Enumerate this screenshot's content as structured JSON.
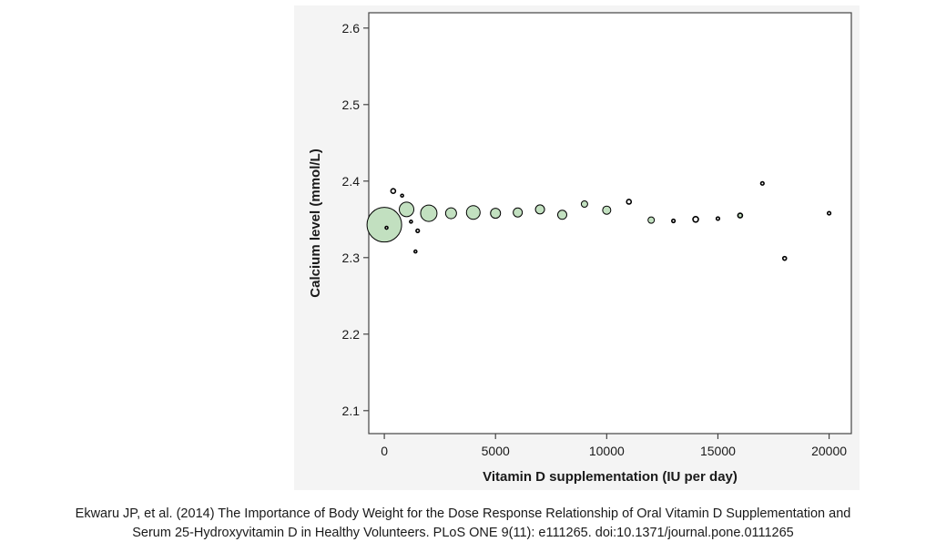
{
  "caption": {
    "line1": "Ekwaru JP, et al. (2014) The Importance of Body Weight for the Dose Response Relationship of Oral Vitamin D Supplementation and",
    "line2": "Serum 25-Hydroxyvitamin D in Healthy Volunteers. PLoS ONE 9(11): e111265. doi:10.1371/journal.pone.0111265"
  },
  "colors": {
    "bubble_fill": "#c2e0c0",
    "marker_stroke": "#000000",
    "panel_background": "#f4f4f4",
    "plot_background": "#ffffff"
  },
  "chart_data": {
    "type": "scatter",
    "xlabel": "Vitamin D supplementation (IU per day)",
    "ylabel": "Calcium level (mmol/L)",
    "xlim": [
      -700,
      21000
    ],
    "ylim": [
      2.07,
      2.62
    ],
    "xticks": [
      0,
      5000,
      10000,
      15000,
      20000
    ],
    "yticks": [
      2.1,
      2.2,
      2.3,
      2.4,
      2.5,
      2.6
    ],
    "grid": false,
    "marker_style": "bubble, area proportional to number of observations",
    "points": [
      {
        "x": 0,
        "y": 2.343,
        "size": 19,
        "fill": true
      },
      {
        "x": 100,
        "y": 2.339,
        "size": 1.5,
        "fill": false
      },
      {
        "x": 400,
        "y": 2.387,
        "size": 2.5,
        "fill": false
      },
      {
        "x": 800,
        "y": 2.381,
        "size": 1.5,
        "fill": false
      },
      {
        "x": 1000,
        "y": 2.363,
        "size": 8,
        "fill": true
      },
      {
        "x": 1200,
        "y": 2.347,
        "size": 1.5,
        "fill": false
      },
      {
        "x": 1400,
        "y": 2.308,
        "size": 1.5,
        "fill": false
      },
      {
        "x": 1500,
        "y": 2.335,
        "size": 1.8,
        "fill": false
      },
      {
        "x": 2000,
        "y": 2.358,
        "size": 9,
        "fill": true
      },
      {
        "x": 3000,
        "y": 2.358,
        "size": 6,
        "fill": true
      },
      {
        "x": 4000,
        "y": 2.359,
        "size": 7.5,
        "fill": true
      },
      {
        "x": 5000,
        "y": 2.358,
        "size": 5.5,
        "fill": true
      },
      {
        "x": 6000,
        "y": 2.359,
        "size": 5,
        "fill": true
      },
      {
        "x": 7000,
        "y": 2.363,
        "size": 5,
        "fill": true
      },
      {
        "x": 8000,
        "y": 2.356,
        "size": 5,
        "fill": true
      },
      {
        "x": 9000,
        "y": 2.37,
        "size": 3.5,
        "fill": true
      },
      {
        "x": 10000,
        "y": 2.362,
        "size": 4.5,
        "fill": true
      },
      {
        "x": 11000,
        "y": 2.373,
        "size": 2.5,
        "fill": false
      },
      {
        "x": 12000,
        "y": 2.349,
        "size": 3.5,
        "fill": true
      },
      {
        "x": 13000,
        "y": 2.348,
        "size": 1.8,
        "fill": false
      },
      {
        "x": 14000,
        "y": 2.35,
        "size": 3,
        "fill": false
      },
      {
        "x": 15000,
        "y": 2.351,
        "size": 1.8,
        "fill": false
      },
      {
        "x": 16000,
        "y": 2.355,
        "size": 2.5,
        "fill": true
      },
      {
        "x": 17000,
        "y": 2.397,
        "size": 1.8,
        "fill": false
      },
      {
        "x": 18000,
        "y": 2.299,
        "size": 2,
        "fill": false
      },
      {
        "x": 20000,
        "y": 2.358,
        "size": 1.8,
        "fill": false
      }
    ]
  }
}
